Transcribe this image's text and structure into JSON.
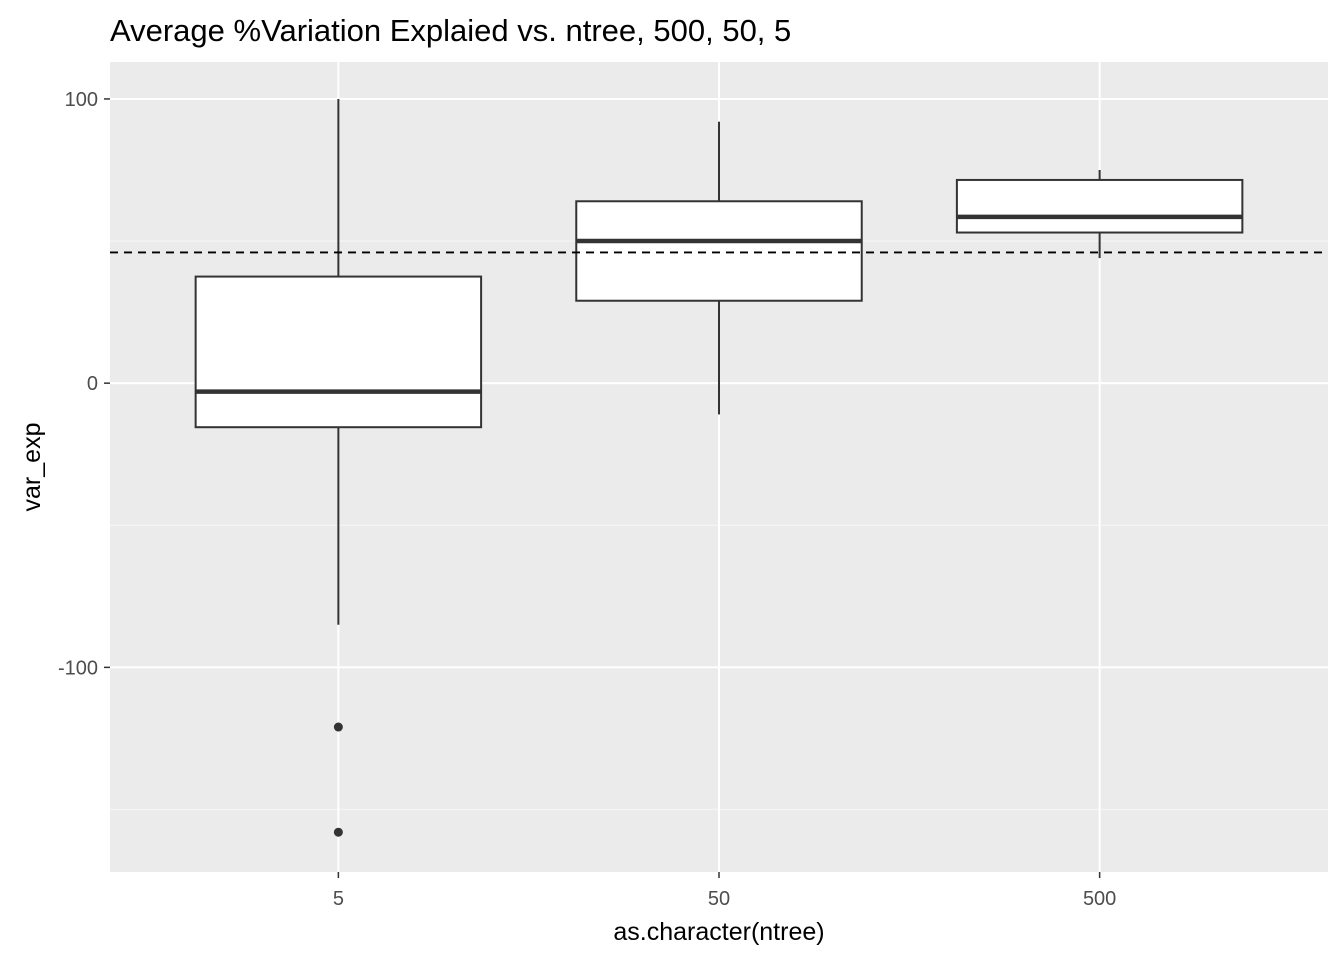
{
  "chart_data": {
    "type": "boxplot",
    "title": "Average %Variation Explaied vs. ntree, 500, 50, 5",
    "xlabel": "as.character(ntree)",
    "ylabel": "var_exp",
    "categories": [
      "5",
      "50",
      "500"
    ],
    "boxes": [
      {
        "category": "5",
        "whisker_low": -85,
        "q1": -15.5,
        "median": -3,
        "q3": 37.5,
        "whisker_high": 100,
        "outliers": [
          -121,
          -158
        ]
      },
      {
        "category": "50",
        "whisker_low": -11,
        "q1": 29,
        "median": 50,
        "q3": 64,
        "whisker_high": 92,
        "outliers": []
      },
      {
        "category": "500",
        "whisker_low": 44,
        "q1": 53,
        "median": 58.5,
        "q3": 71.5,
        "whisker_high": 75,
        "outliers": []
      }
    ],
    "reference_line": {
      "y": 46,
      "style": "dashed"
    },
    "ylim": [
      -172,
      113
    ],
    "yticks": [
      -100,
      0,
      100
    ],
    "ytick_labels": [
      "-100",
      "0",
      "100"
    ],
    "grid": true,
    "colors": {
      "panel_background": "#ebebeb",
      "grid_major": "#ffffff",
      "grid_minor": "#f5f5f5",
      "box_fill": "#ffffff",
      "box_line": "#333333",
      "reference_line": "#000000"
    }
  }
}
